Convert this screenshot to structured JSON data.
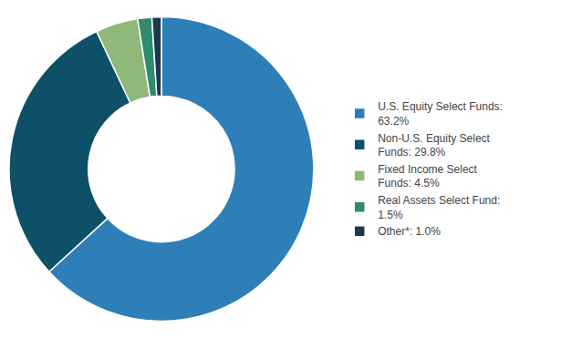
{
  "chart_data": {
    "type": "pie",
    "categories": [
      "U.S. Equity Select Funds:\n63.2%",
      "Non-U.S. Equity Select\nFunds: 29.8%",
      "Fixed Income Select\nFunds: 4.5%",
      "Real Assets Select Fund:\n1.5%",
      "Other*: 1.0%"
    ],
    "values": [
      63.2,
      29.8,
      4.5,
      1.5,
      1.0
    ],
    "colors": [
      "#2e7eb8",
      "#0d5068",
      "#8fb87a",
      "#2e8b6e",
      "#1a3a52"
    ],
    "legend": "right"
  }
}
